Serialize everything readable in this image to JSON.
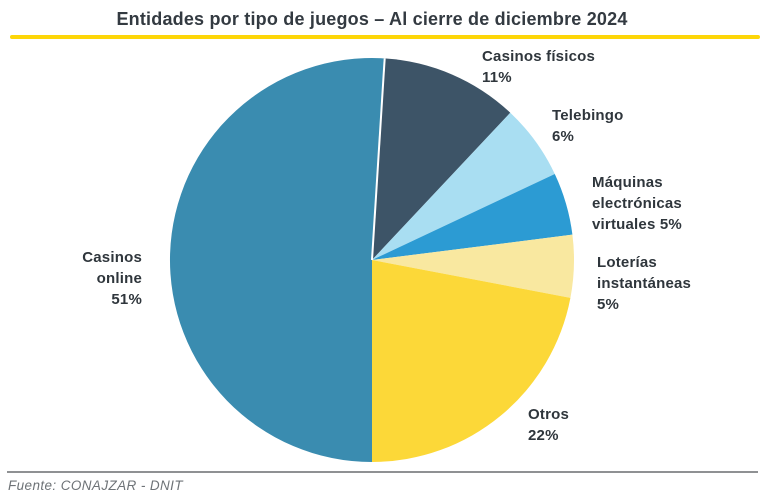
{
  "footer": {
    "source": "Fuente: CONAJZAR - DNIT"
  },
  "colors": {
    "background": "#ffffff",
    "accent_rule": "#fdd608",
    "title_text": "#333a41",
    "label_text": "#2f363c",
    "footer_text": "#6e7377",
    "footer_rule": "#8f9193",
    "slice_separator": "#ffffff"
  },
  "chart_data": {
    "type": "pie",
    "title": "Entidades por tipo de juegos – Al cierre de diciembre 2024",
    "unit": "%",
    "direction": "clockwise",
    "start_angle_deg": 3.6,
    "legend_position": "labels-around-pie",
    "total": 100,
    "slices": [
      {
        "id": "casinos-fisicos",
        "label": "Casinos físicos",
        "value": 11,
        "pct_label": "11%",
        "color": "#3d5467",
        "label_lines": [
          "Casinos físicos",
          "11%"
        ]
      },
      {
        "id": "telebingo",
        "label": "Telebingo",
        "value": 6,
        "pct_label": "6%",
        "color": "#a9def2",
        "label_lines": [
          "Telebingo",
          "6%"
        ]
      },
      {
        "id": "maquinas-electronicas-virtuales",
        "label": "Máquinas electrónicas virtuales",
        "value": 5,
        "pct_label": "5%",
        "color": "#2c9bd3",
        "label_lines": [
          "Máquinas",
          "electrónicas",
          "virtuales 5%"
        ]
      },
      {
        "id": "loterias-instantaneas",
        "label": "Loterías instantáneas",
        "value": 5,
        "pct_label": "5%",
        "color": "#f9e8a0",
        "label_lines": [
          "Loterías",
          "instantáneas",
          "5%"
        ]
      },
      {
        "id": "otros",
        "label": "Otros",
        "value": 22,
        "pct_label": "22%",
        "color": "#fcd838",
        "label_lines": [
          "Otros",
          "22%"
        ]
      },
      {
        "id": "casinos-online",
        "label": "Casinos online",
        "value": 51,
        "pct_label": "51%",
        "color": "#3a8cb0",
        "label_lines": [
          "Casinos",
          "online",
          "51%"
        ]
      }
    ]
  }
}
